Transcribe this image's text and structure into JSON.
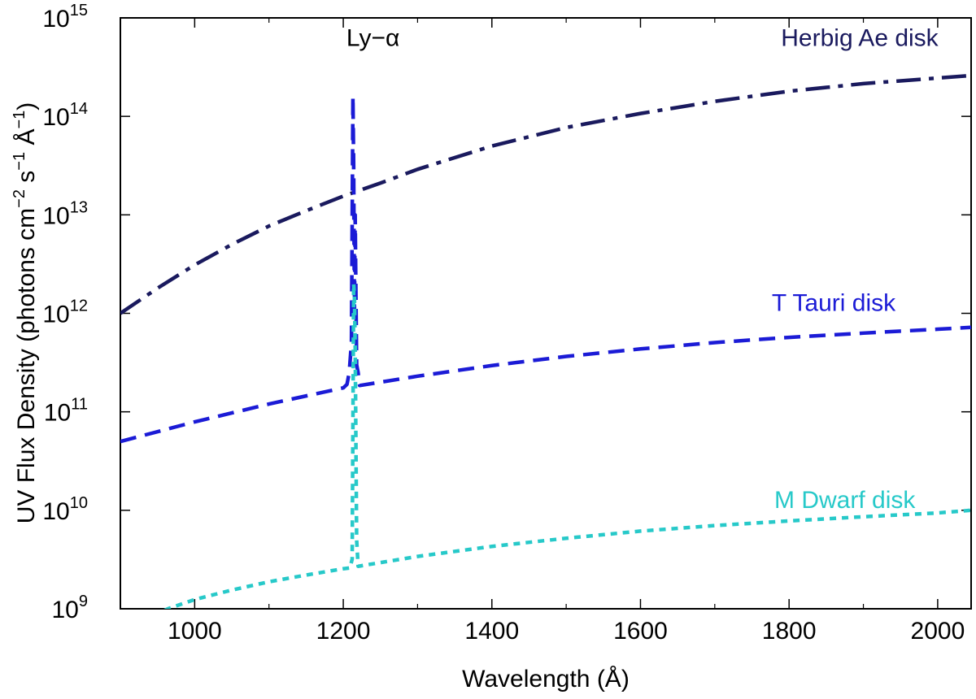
{
  "chart_data": {
    "type": "line",
    "title": "",
    "xlabel": "Wavelength (Å)",
    "ylabel": {
      "prefix": "UV Flux Density (photons cm",
      "exp1": "−2",
      "mid1": " s",
      "exp2": "−1",
      "mid2": " Å",
      "exp3": "−1",
      "suffix": ")"
    },
    "xlim": [
      900,
      2045
    ],
    "ylim": [
      1000000000.0,
      1000000000000000.0
    ],
    "yscale": "log",
    "grid": false,
    "x_ticks": [
      1000,
      1200,
      1400,
      1600,
      1800,
      2000
    ],
    "y_ticks": [
      {
        "value": 1000000000.0,
        "base": "10",
        "exp": "9"
      },
      {
        "value": 10000000000.0,
        "base": "10",
        "exp": "10"
      },
      {
        "value": 100000000000.0,
        "base": "10",
        "exp": "11"
      },
      {
        "value": 1000000000000.0,
        "base": "10",
        "exp": "12"
      },
      {
        "value": 10000000000000.0,
        "base": "10",
        "exp": "13"
      },
      {
        "value": 100000000000000.0,
        "base": "10",
        "exp": "14"
      },
      {
        "value": 1000000000000000.0,
        "base": "10",
        "exp": "15"
      }
    ],
    "series": [
      {
        "name": "Herbig Ae disk",
        "color": "#1a1a5e",
        "style": "dash-dot",
        "x": [
          900,
          950,
          1000,
          1050,
          1100,
          1150,
          1200,
          1250,
          1300,
          1400,
          1500,
          1600,
          1700,
          1800,
          1900,
          2000,
          2045
        ],
        "y": [
          1000000000000.0,
          1800000000000.0,
          3100000000000.0,
          5000000000000.0,
          7700000000000.0,
          11000000000000.0,
          15500000000000.0,
          21000000000000.0,
          29000000000000.0,
          50000000000000.0,
          77000000000000.0,
          107000000000000.0,
          142000000000000.0,
          180000000000000.0,
          215000000000000.0,
          245000000000000.0,
          260000000000000.0
        ]
      },
      {
        "name": "T Tauri disk",
        "color": "#1b1bd6",
        "style": "dashed",
        "x": [
          900,
          1000,
          1100,
          1200,
          1205,
          1208,
          1211,
          1213,
          1214,
          1215,
          1216,
          1217,
          1218,
          1220,
          1222,
          1300,
          1400,
          1500,
          1600,
          1700,
          1800,
          1900,
          2000,
          2045
        ],
        "y": [
          50000000000.0,
          79000000000.0,
          120000000000.0,
          175000000000.0,
          190000000000.0,
          250000000000.0,
          500000000000.0,
          160000000000000.0,
          30000000000000.0,
          1000000000000.0,
          10000000000000.0,
          1600000000000.0,
          300000000000.0,
          250000000000.0,
          185000000000.0,
          230000000000.0,
          295000000000.0,
          365000000000.0,
          435000000000.0,
          505000000000.0,
          570000000000.0,
          630000000000.0,
          690000000000.0,
          720000000000.0
        ]
      },
      {
        "name": "M Dwarf disk",
        "color": "#27c9c9",
        "style": "dotted",
        "x": [
          900,
          964,
          1000,
          1050,
          1100,
          1150,
          1200,
          1209,
          1212,
          1214,
          1215,
          1216,
          1218,
          1220,
          1300,
          1400,
          1500,
          1600,
          1700,
          1800,
          1900,
          2000,
          2045
        ],
        "y": [
          600000000.0,
          1000000000.0,
          1240000000.0,
          1550000000.0,
          1880000000.0,
          2200000000.0,
          2550000000.0,
          2600000000.0,
          3200000000.0,
          2000000000000.0,
          1500000000000.0,
          500000000000.0,
          5000000000.0,
          2700000000.0,
          3400000000.0,
          4300000000.0,
          5200000000.0,
          6150000000.0,
          7000000000.0,
          7800000000.0,
          8600000000.0,
          9400000000.0,
          10000000000.0
        ]
      }
    ],
    "annotations": [
      {
        "text": "Ly−α",
        "x": 1240,
        "y": 520000000000000.0,
        "color": "#000000"
      },
      {
        "text": "Herbig Ae disk",
        "x": 1895,
        "y": 520000000000000.0,
        "color": "#1a1a5e"
      },
      {
        "text": "T Tauri disk",
        "x": 1860,
        "y": 1060000000000.0,
        "color": "#1b1bd6"
      },
      {
        "text": "M Dwarf disk",
        "x": 1875,
        "y": 10600000000.0,
        "color": "#27c9c9"
      }
    ]
  }
}
